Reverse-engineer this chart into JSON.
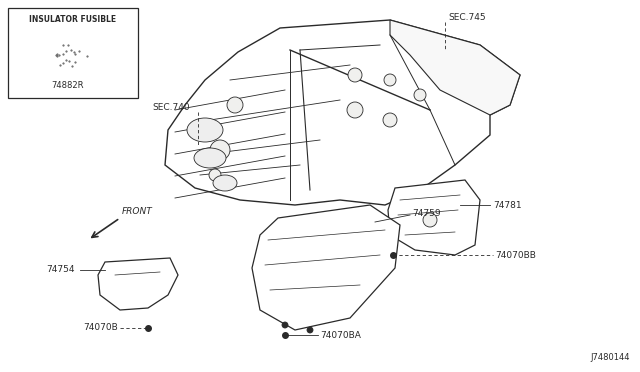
{
  "bg_color": "#ffffff",
  "line_color": "#2a2a2a",
  "diagram_id": "J7480144",
  "inset_label": "INSULATOR FUSIBLE",
  "inset_part": "74882R",
  "figsize": [
    6.4,
    3.72
  ],
  "dpi": 100
}
